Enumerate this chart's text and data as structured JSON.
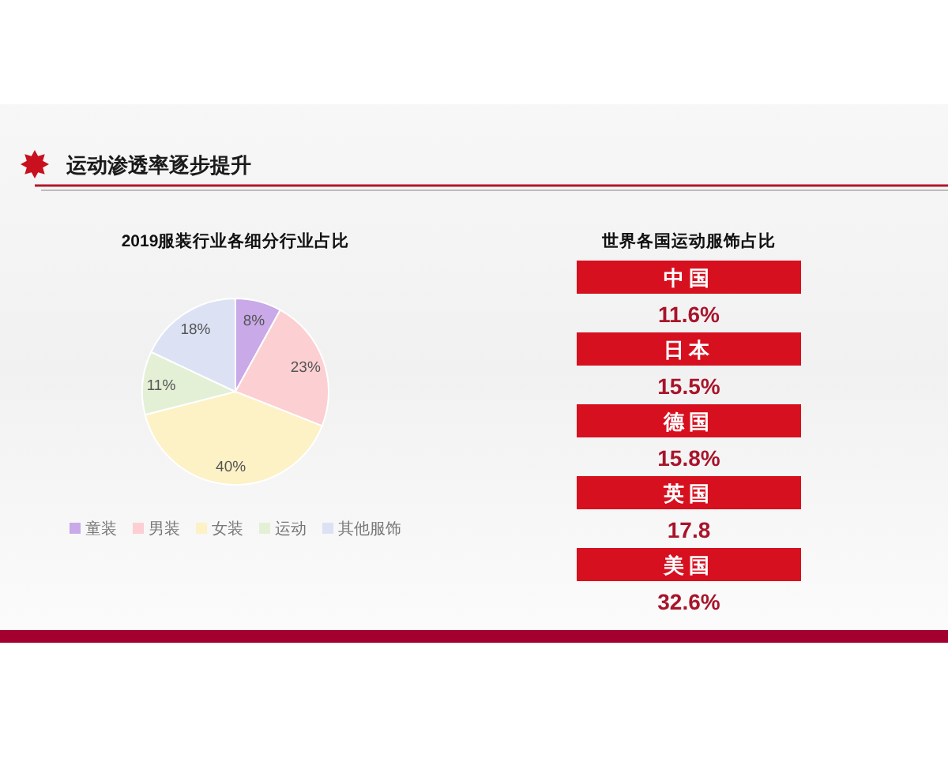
{
  "chart_data": [
    {
      "type": "other",
      "title": "运动渗透率逐步提升"
    },
    {
      "type": "pie",
      "title": "2019服装行业各细分行业占比",
      "categories": [
        "童装",
        "男装",
        "女装",
        "运动",
        "其他服饰"
      ],
      "values": [
        8,
        23,
        40,
        11,
        18
      ],
      "value_labels": [
        "8%",
        "23%",
        "40%",
        "11%",
        "18%"
      ],
      "colors": [
        "#c9a9e8",
        "#fccfd3",
        "#fdf1c6",
        "#e3f0d6",
        "#dce2f4"
      ],
      "legend": "bottom"
    },
    {
      "type": "other",
      "title": "世界各国运动服饰占比",
      "categories": [
        "中国",
        "日本",
        "德国",
        "英国",
        "美国"
      ],
      "values": [
        11.6,
        15.5,
        15.8,
        17.8,
        32.6
      ],
      "value_labels": [
        "11.6%",
        "15.5%",
        "15.8%",
        "17.8",
        "32.6%"
      ],
      "color": "#d7101f"
    }
  ]
}
